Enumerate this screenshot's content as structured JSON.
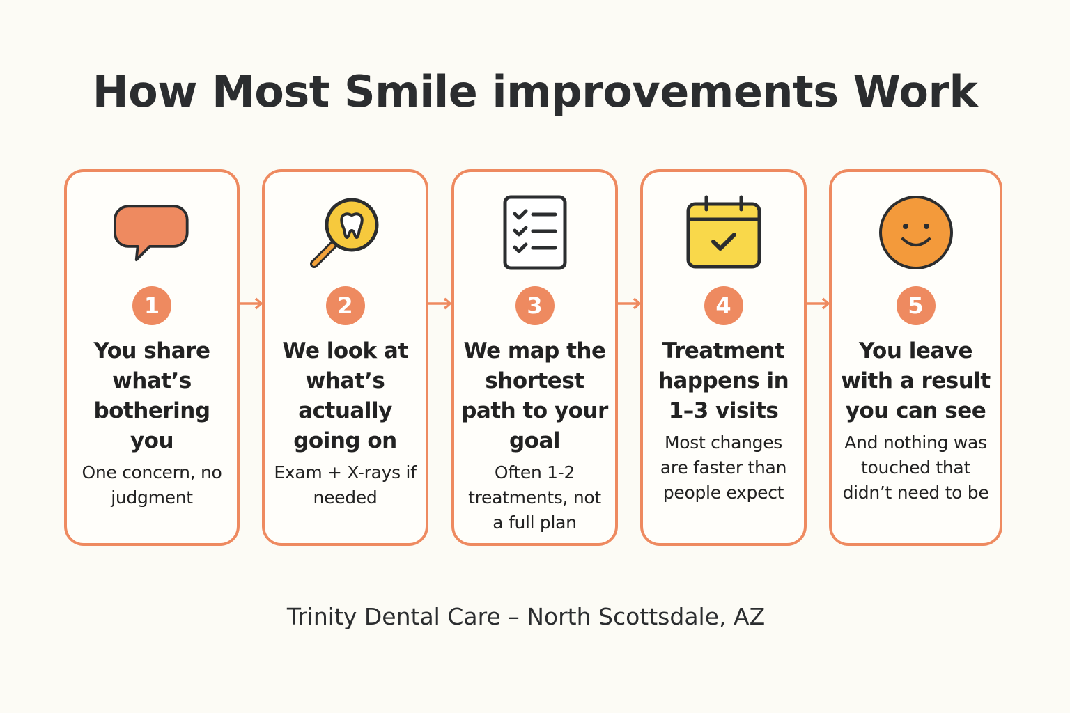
{
  "header": {
    "title": "How Most Smile improvements Work"
  },
  "steps": [
    {
      "number": 1,
      "title": "You share what’s bothering you",
      "description": "One concern, no judgment"
    },
    {
      "number": 2,
      "title": "We look at what’s actually going on",
      "description": "Exam + X-rays if needed"
    },
    {
      "number": 3,
      "title": "We map the shortest path to your goal",
      "description": "Often 1-2 treatments, not a full plan"
    },
    {
      "number": 4,
      "title": "Treatment happens in 1–3 visits",
      "description": "Most changes are faster than people expect"
    },
    {
      "number": 5,
      "title": "You leave with a result you can see",
      "description": "And nothing was touched that didn’t need to be"
    }
  ],
  "footer": {
    "text": "Trinity Dental Care – North Scottsdale, AZ"
  }
}
